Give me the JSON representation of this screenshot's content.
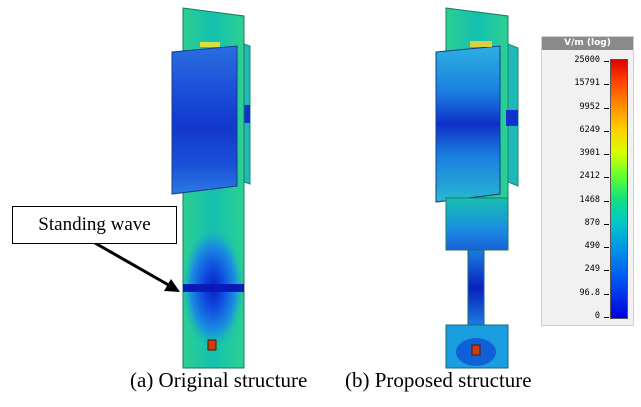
{
  "callout": {
    "text": "Standing wave"
  },
  "captions": {
    "a": "(a) Original structure",
    "b": "(b) Proposed structure"
  },
  "legend": {
    "title": "V/m (log)",
    "ticks": [
      "25000",
      "15791",
      "9952",
      "6249",
      "3901",
      "2412",
      "1468",
      "870",
      "490",
      "249",
      "96.8",
      "0"
    ]
  },
  "colors": {
    "field_low": "#1030d8",
    "field_mid": "#1e8ee0",
    "field_bg": "#18c0a8",
    "field_edge": "#40d880",
    "hot_spot": "#e85010"
  }
}
